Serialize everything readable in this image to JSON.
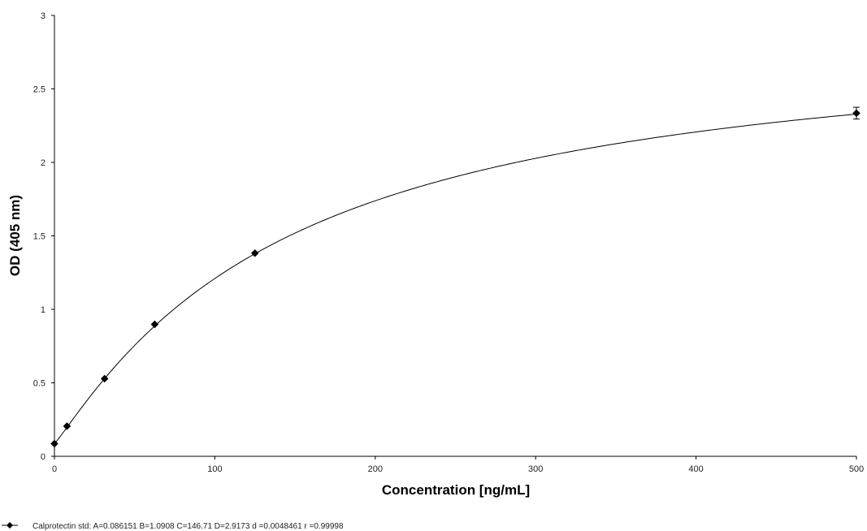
{
  "chart_data": {
    "type": "scatter",
    "title": "",
    "xlabel": "Concentration [ng/mL]",
    "ylabel": "OD (405 nm)",
    "xlim": [
      0,
      500
    ],
    "ylim": [
      0,
      3
    ],
    "x_ticks": [
      0,
      100,
      200,
      300,
      400,
      500
    ],
    "x_tick_labels": [
      "0",
      "100",
      "200",
      "300",
      "400",
      "500"
    ],
    "y_ticks": [
      0,
      0.5,
      1,
      1.5,
      2,
      2.5,
      3
    ],
    "y_tick_labels": [
      "0",
      "0.5",
      "1",
      "1.5",
      "2",
      "2.5",
      "3"
    ],
    "grid": false,
    "legend_position": "bottom-left",
    "series": [
      {
        "name": "Calprotectin std",
        "color": "#000000",
        "marker": "diamond",
        "x": [
          0,
          7.8,
          31.25,
          62.5,
          125,
          500
        ],
        "y": [
          0.086,
          0.205,
          0.528,
          0.898,
          1.382,
          2.335
        ],
        "error": [
          0,
          0,
          0,
          0,
          0,
          0.04
        ]
      }
    ],
    "fit": {
      "model": "4PL",
      "A": 0.086151,
      "B": 1.0908,
      "C": 146.71,
      "D": 2.9173
    },
    "legend": {
      "label": "Calprotectin std:  A=0.086151 B=1.0908 C=146.71 D=2.9173  d =0.0048461  r =0.99998"
    }
  }
}
